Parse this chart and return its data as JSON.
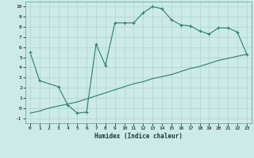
{
  "xlabel": "Humidex (Indice chaleur)",
  "bg_color": "#cceae7",
  "grid_color": "#afd4d0",
  "line_color": "#2e7d6e",
  "xlim": [
    -0.5,
    23.5
  ],
  "ylim": [
    -1.5,
    10.5
  ],
  "xticks": [
    0,
    1,
    2,
    3,
    4,
    5,
    6,
    7,
    8,
    9,
    10,
    11,
    12,
    13,
    14,
    15,
    16,
    17,
    18,
    19,
    20,
    21,
    22,
    23
  ],
  "yticks": [
    -1,
    0,
    1,
    2,
    3,
    4,
    5,
    6,
    7,
    8,
    9,
    10
  ],
  "line1_x": [
    0,
    1,
    3,
    4,
    5,
    6,
    7,
    8,
    9,
    10,
    11,
    12,
    13,
    14,
    15,
    16,
    17,
    18,
    19,
    20,
    21,
    22,
    23
  ],
  "line1_y": [
    5.5,
    2.7,
    2.1,
    0.3,
    -0.5,
    -0.4,
    6.3,
    4.2,
    8.4,
    8.4,
    8.4,
    9.4,
    10.0,
    9.8,
    8.7,
    8.2,
    8.1,
    7.6,
    7.3,
    7.9,
    7.9,
    7.5,
    5.3
  ],
  "line2_x": [
    0,
    1,
    2,
    3,
    4,
    5,
    6,
    7,
    8,
    9,
    10,
    11,
    12,
    13,
    14,
    15,
    16,
    17,
    18,
    19,
    20,
    21,
    22,
    23
  ],
  "line2_y": [
    -0.5,
    -0.3,
    0.0,
    0.2,
    0.4,
    0.6,
    0.9,
    1.2,
    1.5,
    1.8,
    2.1,
    2.4,
    2.6,
    2.9,
    3.1,
    3.3,
    3.6,
    3.9,
    4.1,
    4.4,
    4.7,
    4.9,
    5.1,
    5.3
  ]
}
